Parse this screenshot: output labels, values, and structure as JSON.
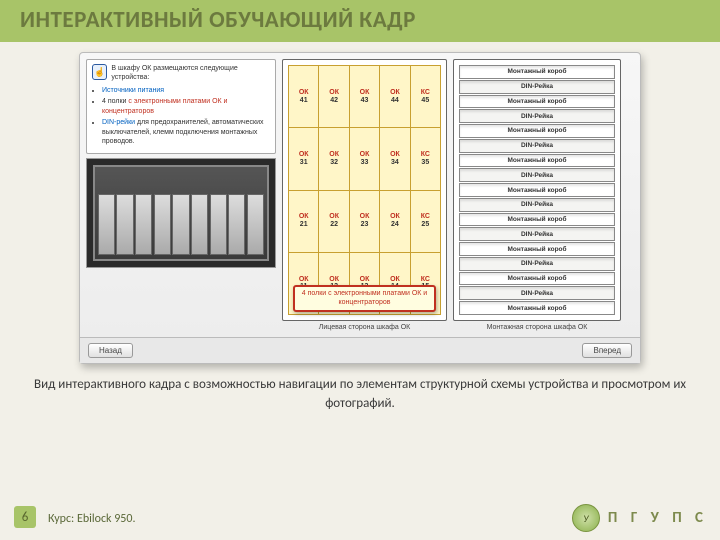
{
  "title": "ИНТЕРАКТИВНЫЙ ОБУЧАЮЩИЙ КАДР",
  "app": {
    "info_lead": "В шкафу ОК размещаются следующие устройства:",
    "bullets": [
      {
        "html": "<span class='blue'>Источники питания</span>"
      },
      {
        "html": "4 полки <span class='red'>с электронными платами ОК и концентраторов</span>"
      },
      {
        "html": "<span class='blue'>DIN-рейки</span> для предохранителей, автоматических выключателей, клемм подключения монтажных проводов."
      }
    ],
    "shelves": [
      [
        {
          "t": "ОК",
          "n": "41"
        },
        {
          "t": "ОК",
          "n": "42"
        },
        {
          "t": "ОК",
          "n": "43"
        },
        {
          "t": "ОК",
          "n": "44"
        },
        {
          "t": "КС",
          "n": "45"
        }
      ],
      [
        {
          "t": "ОК",
          "n": "31"
        },
        {
          "t": "ОК",
          "n": "32"
        },
        {
          "t": "ОК",
          "n": "33"
        },
        {
          "t": "ОК",
          "n": "34"
        },
        {
          "t": "КС",
          "n": "35"
        }
      ],
      [
        {
          "t": "ОК",
          "n": "21"
        },
        {
          "t": "ОК",
          "n": "22"
        },
        {
          "t": "ОК",
          "n": "23"
        },
        {
          "t": "ОК",
          "n": "24"
        },
        {
          "t": "КС",
          "n": "25"
        }
      ],
      [
        {
          "t": "ОК",
          "n": "11"
        },
        {
          "t": "ОК",
          "n": "12"
        },
        {
          "t": "ОК",
          "n": "13"
        },
        {
          "t": "ОК",
          "n": "14"
        },
        {
          "t": "КС",
          "n": "15"
        }
      ]
    ],
    "callout": "4 полки с электронными платами ОК и концентраторов",
    "rails": [
      "Монтажный короб",
      "DIN-Рейка",
      "Монтажный короб",
      "DIN-Рейка",
      "Монтажный короб",
      "DIN-Рейка",
      "Монтажный короб",
      "DIN-Рейка",
      "Монтажный короб",
      "DIN-Рейка",
      "Монтажный короб",
      "DIN-Рейка",
      "Монтажный короб",
      "DIN-Рейка",
      "Монтажный короб",
      "DIN-Рейка",
      "Монтажный короб"
    ],
    "caption_left": "Лицевая сторона шкафа ОК",
    "caption_right": "Монтажная сторона шкафа ОК",
    "btn_back": "Назад",
    "btn_fwd": "Вперед"
  },
  "caption": "Вид интерактивного кадра с возможностью навигации по элементам структурной схемы устройства и просмотром их фотографий.",
  "page_num": "6",
  "course": "Курс: Ebilock 950.",
  "brand": "П Г У П С",
  "colors": {
    "top_bar": "#a8c468",
    "bg": "#f2f0e8"
  }
}
